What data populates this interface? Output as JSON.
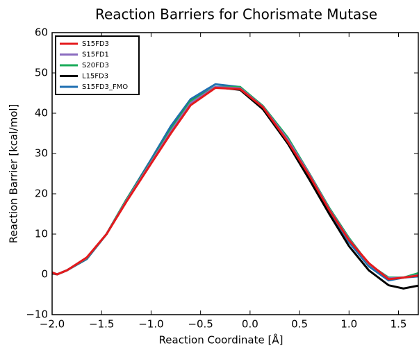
{
  "chart_data": {
    "type": "line",
    "title": "Reaction Barriers for Chorismate Mutase",
    "x_label": "Reaction Coordinate [Å]",
    "y_label": "Reaction Barrier [kcal/mol]",
    "x": [
      -2.0,
      -1.95,
      -1.85,
      -1.65,
      -1.45,
      -1.25,
      -1.0,
      -0.8,
      -0.6,
      -0.35,
      -0.1,
      0.13,
      0.38,
      0.6,
      0.8,
      1.0,
      1.2,
      1.4,
      1.55,
      1.7
    ],
    "series": [
      {
        "name": "S15FD3",
        "color": "#e41a1c",
        "values": [
          0.5,
          0,
          1,
          4.2,
          10,
          18,
          27.5,
          35,
          42,
          46.3,
          46,
          41.5,
          33,
          24.5,
          16,
          8.5,
          2.8,
          -1.2,
          -0.8,
          -0.3
        ]
      },
      {
        "name": "S15FD1",
        "color": "#8a6bbf",
        "values": [
          0.5,
          0,
          1,
          4.1,
          10,
          18.2,
          27.8,
          35.5,
          42.5,
          46.5,
          46.2,
          41.6,
          33.5,
          24.8,
          16.2,
          8.7,
          2.6,
          -1,
          -0.8,
          -0.2
        ]
      },
      {
        "name": "S20FD3",
        "color": "#1aab5a",
        "values": [
          0.5,
          0,
          1,
          4,
          10,
          18.5,
          28,
          36,
          43,
          46.5,
          46.5,
          41.8,
          34,
          25,
          16.5,
          9,
          2.5,
          -0.8,
          -0.8,
          0.3
        ]
      },
      {
        "name": "L15FD3",
        "color": "#000000",
        "values": [
          0.3,
          0,
          1,
          4,
          10,
          18.5,
          28,
          36,
          43,
          46.5,
          45.8,
          41,
          32.5,
          23.5,
          15,
          7,
          1,
          -2.7,
          -3.5,
          -2.8
        ]
      },
      {
        "name": "S15FD3_FMO",
        "color": "#1f6fb2",
        "values": [
          0.3,
          0,
          1,
          3.8,
          10,
          18.5,
          28.5,
          36.8,
          43.5,
          47.2,
          46.5,
          41.5,
          33.5,
          24.5,
          15.5,
          8,
          2,
          -1.5,
          -0.8,
          -0.5
        ]
      }
    ],
    "xlim": [
      -2.0,
      1.7
    ],
    "xticks": [
      {
        "value": -2,
        "label": "−2.0"
      },
      {
        "value": -1.5,
        "label": "−1.5"
      },
      {
        "value": -1,
        "label": "−1.0"
      },
      {
        "value": -0.5,
        "label": "−0.5"
      },
      {
        "value": 0,
        "label": "0.0"
      },
      0.5,
      {
        "value": 1,
        "label": "1.0"
      },
      1.5
    ],
    "ylim": [
      -10,
      60
    ],
    "yticks": [
      {
        "value": -10,
        "label": "−10"
      },
      0,
      10,
      20,
      30,
      40,
      50,
      60
    ],
    "legend": "upper left",
    "grid": false
  }
}
